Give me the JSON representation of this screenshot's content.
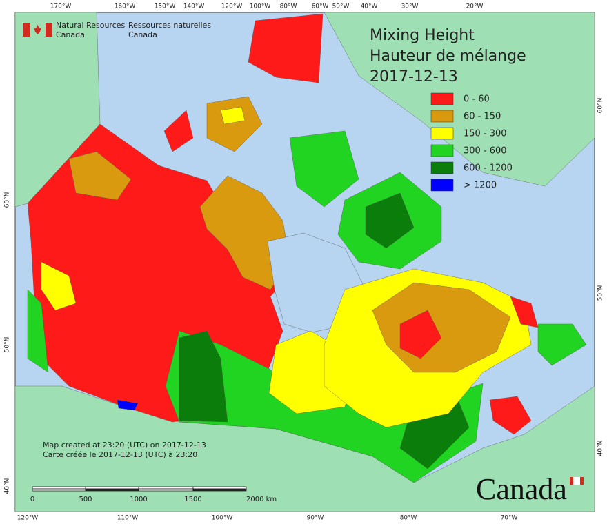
{
  "agency": {
    "en": [
      "Natural Resources",
      "Canada"
    ],
    "fr": [
      "Ressources naturelles",
      "Canada"
    ]
  },
  "title": [
    "Mixing Height",
    "Hauteur de mélange",
    "2017-12-13"
  ],
  "legend": [
    {
      "label": "0 - 60",
      "color": "#ff1a1a"
    },
    {
      "label": "60 - 150",
      "color": "#d99a10"
    },
    {
      "label": "150 - 300",
      "color": "#ffff00"
    },
    {
      "label": "300 - 600",
      "color": "#22d422"
    },
    {
      "label": "600 - 1200",
      "color": "#0b7d0b"
    },
    {
      "label": "> 1200",
      "color": "#0000ff"
    }
  ],
  "top_labels": [
    "170°W",
    "160°W",
    "150°W",
    "140°W",
    "120°W",
    "100°W",
    "80°W",
    "60°W",
    "50°W",
    "40°W",
    "30°W",
    "20°W"
  ],
  "bottom_labels": [
    "120°W",
    "110°W",
    "100°W",
    "90°W",
    "80°W",
    "70°W"
  ],
  "left_labels": [
    "60°N",
    "50°N",
    "40°N"
  ],
  "right_labels": [
    "60°N",
    "50°N",
    "40°N"
  ],
  "notes": [
    "Map created at 23:20 (UTC) on 2017-12-13",
    "Carte créée le 2017-12-13 (UTC) à 23:20"
  ],
  "scale": [
    "0",
    "500",
    "1000",
    "1500",
    "2000 km"
  ],
  "wordmark": "Canada"
}
